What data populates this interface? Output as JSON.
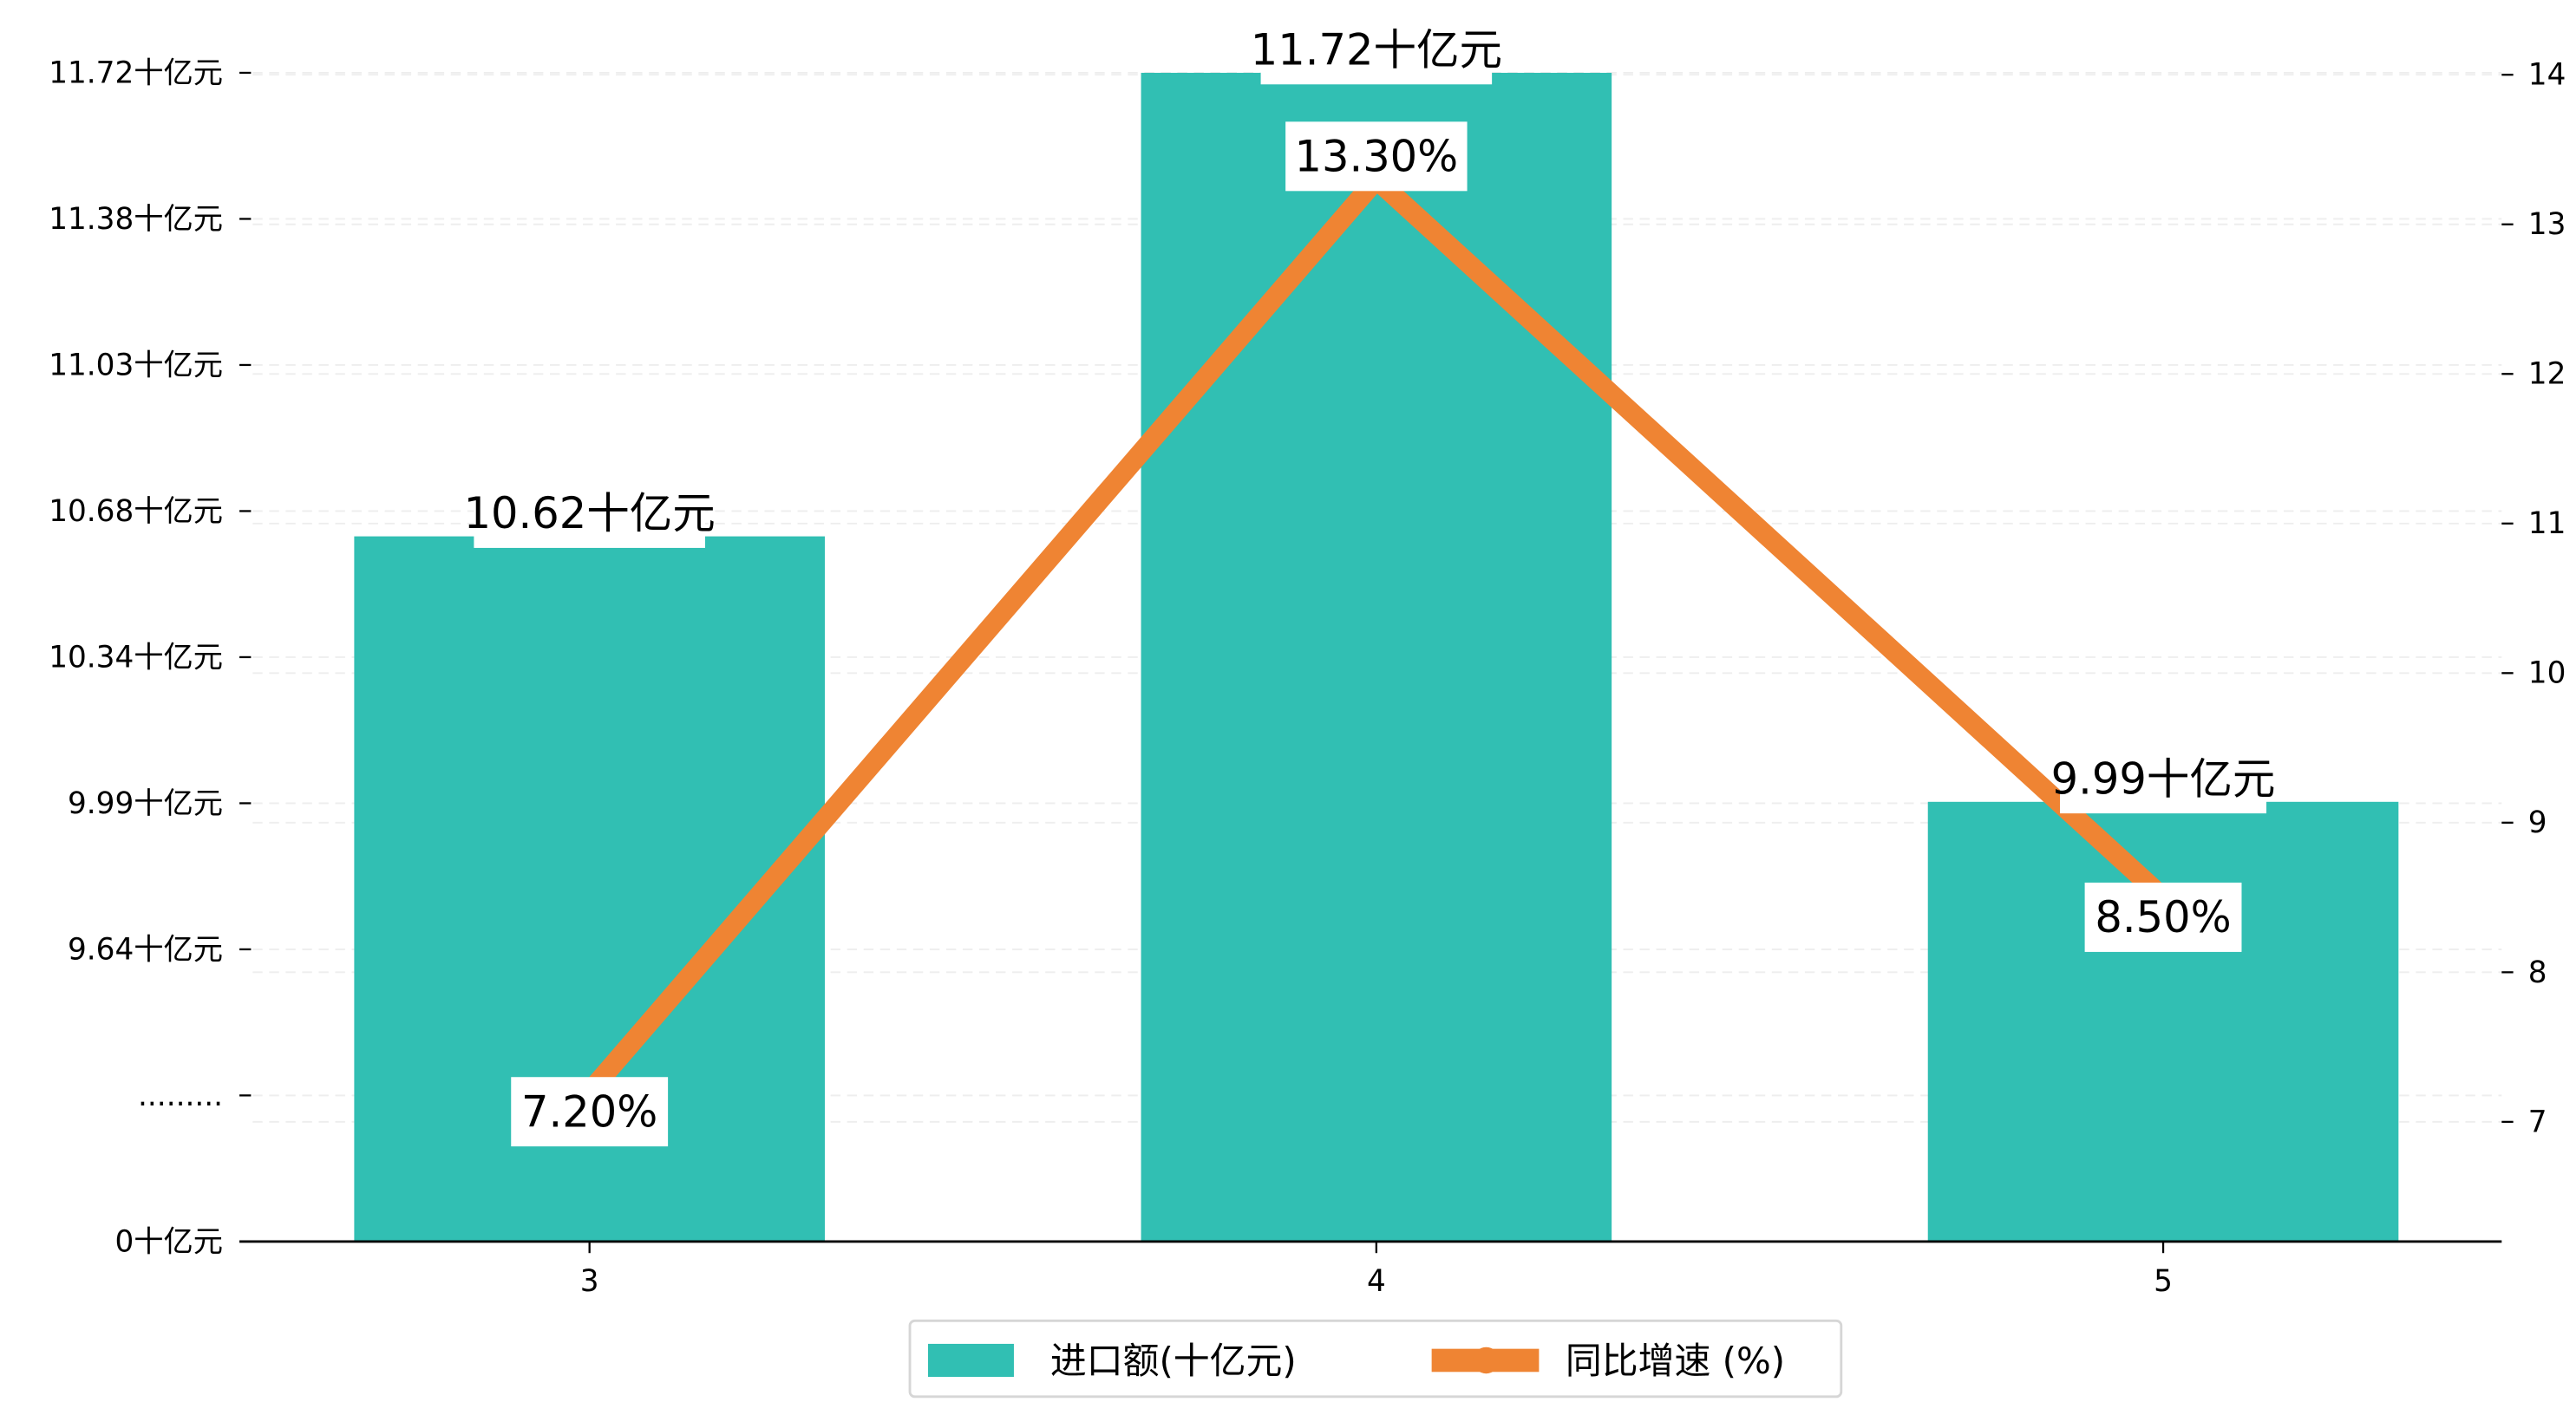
{
  "chart_data": {
    "type": "bar+line",
    "categories": [
      "3",
      "4",
      "5"
    ],
    "series": [
      {
        "name": "进口额(十亿元)",
        "type": "bar",
        "axis": "left",
        "values": [
          10.62,
          11.72,
          9.99
        ],
        "labels": [
          "10.62十亿元",
          "11.72十亿元",
          "9.99十亿元"
        ],
        "color": "#31bfb3"
      },
      {
        "name": "同比增速 (%)",
        "type": "line",
        "axis": "right",
        "values": [
          7.2,
          13.3,
          8.5
        ],
        "labels": [
          "7.20%",
          "13.30%",
          "8.50%"
        ],
        "color": "#ef8433"
      }
    ],
    "left_axis": {
      "tick_labels": [
        "0十亿元",
        ".........",
        "9.64十亿元",
        "9.99十亿元",
        "10.34十亿元",
        "10.68十亿元",
        "11.03十亿元",
        "11.38十亿元",
        "11.72十亿元"
      ],
      "tick_values": [
        0,
        null,
        9.64,
        9.99,
        10.34,
        10.68,
        11.03,
        11.38,
        11.72
      ],
      "broken": true
    },
    "right_axis": {
      "ticks": [
        7,
        8,
        9,
        10,
        11,
        12,
        13,
        14
      ],
      "ylim": [
        6.2,
        14.3
      ]
    },
    "grid": true,
    "legend_position": "bottom-center"
  }
}
